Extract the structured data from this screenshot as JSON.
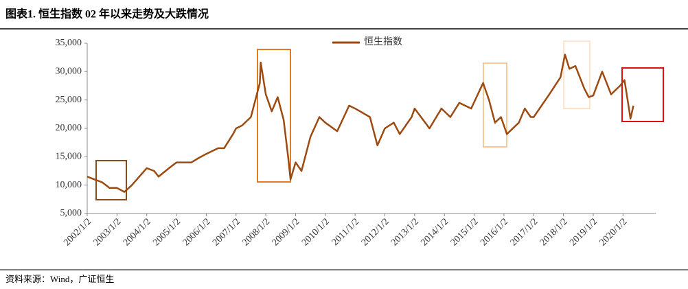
{
  "chart_data": {
    "type": "line",
    "title": "图表1.   恒生指数 02 年以来走势及大跌情况",
    "source": "资料来源：Wind，广证恒生",
    "legend": "top",
    "x": [
      2002.0,
      2002.25,
      2002.5,
      2002.75,
      2003.0,
      2003.25,
      2003.5,
      2003.75,
      2004.0,
      2004.25,
      2004.4,
      2004.75,
      2005.0,
      2005.5,
      2005.75,
      2006.0,
      2006.4,
      2006.6,
      2006.9,
      2007.0,
      2007.2,
      2007.5,
      2007.8,
      2007.83,
      2008.0,
      2008.2,
      2008.4,
      2008.6,
      2008.75,
      2008.83,
      2009.0,
      2009.2,
      2009.5,
      2009.8,
      2010.0,
      2010.4,
      2010.8,
      2011.0,
      2011.5,
      2011.75,
      2012.0,
      2012.3,
      2012.5,
      2012.9,
      2013.0,
      2013.5,
      2013.9,
      2014.2,
      2014.5,
      2014.9,
      2015.3,
      2015.5,
      2015.7,
      2015.9,
      2016.1,
      2016.5,
      2016.7,
      2016.9,
      2017.0,
      2017.5,
      2017.9,
      2018.05,
      2018.2,
      2018.4,
      2018.7,
      2018.85,
      2019.0,
      2019.3,
      2019.6,
      2019.9,
      2020.05,
      2020.2,
      2020.25,
      2020.35
    ],
    "series": [
      {
        "name": "恒生指数",
        "color": "#9c4a10",
        "values": [
          11500,
          11000,
          10500,
          9500,
          9500,
          8800,
          10000,
          11500,
          13000,
          12500,
          11500,
          13000,
          14000,
          14000,
          14800,
          15500,
          16500,
          16500,
          19000,
          20000,
          20500,
          22000,
          28000,
          31600,
          26000,
          23000,
          25500,
          21500,
          15000,
          11000,
          14000,
          12500,
          18500,
          22000,
          21000,
          19500,
          24000,
          23500,
          22000,
          17000,
          20000,
          21000,
          19000,
          22000,
          23500,
          20000,
          23500,
          22000,
          24500,
          23500,
          28000,
          25000,
          21000,
          22000,
          19000,
          21000,
          23500,
          22000,
          22000,
          25800,
          29000,
          33000,
          30500,
          31000,
          27000,
          25500,
          25800,
          30000,
          26000,
          27500,
          28500,
          23500,
          21700,
          24000
        ]
      }
    ],
    "xlim": [
      2002,
      2021.1
    ],
    "xticks": [
      {
        "value": 2002,
        "label": "2002/1/2"
      },
      {
        "value": 2003,
        "label": "2003/1/2"
      },
      {
        "value": 2004,
        "label": "2004/1/2"
      },
      {
        "value": 2005,
        "label": "2005/1/2"
      },
      {
        "value": 2006,
        "label": "2006/1/2"
      },
      {
        "value": 2007,
        "label": "2007/1/2"
      },
      {
        "value": 2008,
        "label": "2008/1/2"
      },
      {
        "value": 2009,
        "label": "2009/1/2"
      },
      {
        "value": 2010,
        "label": "2010/1/2"
      },
      {
        "value": 2011,
        "label": "2011/1/2"
      },
      {
        "value": 2012,
        "label": "2012/1/2"
      },
      {
        "value": 2013,
        "label": "2013/1/2"
      },
      {
        "value": 2014,
        "label": "2014/1/2"
      },
      {
        "value": 2015,
        "label": "2015/1/2"
      },
      {
        "value": 2016,
        "label": "2016/1/2"
      },
      {
        "value": 2017,
        "label": "2017/1/2"
      },
      {
        "value": 2018,
        "label": "2018/1/2"
      },
      {
        "value": 2019,
        "label": "2019/1/2"
      },
      {
        "value": 2020,
        "label": "2020/1/2"
      }
    ],
    "ylim": [
      5000,
      35000
    ],
    "yticks": [
      {
        "value": 5000,
        "label": "5,000"
      },
      {
        "value": 10000,
        "label": "10,000"
      },
      {
        "value": 15000,
        "label": "15,000"
      },
      {
        "value": 20000,
        "label": "20,000"
      },
      {
        "value": 25000,
        "label": "25,000"
      },
      {
        "value": 30000,
        "label": "30,000"
      },
      {
        "value": 35000,
        "label": "35,000"
      }
    ]
  }
}
